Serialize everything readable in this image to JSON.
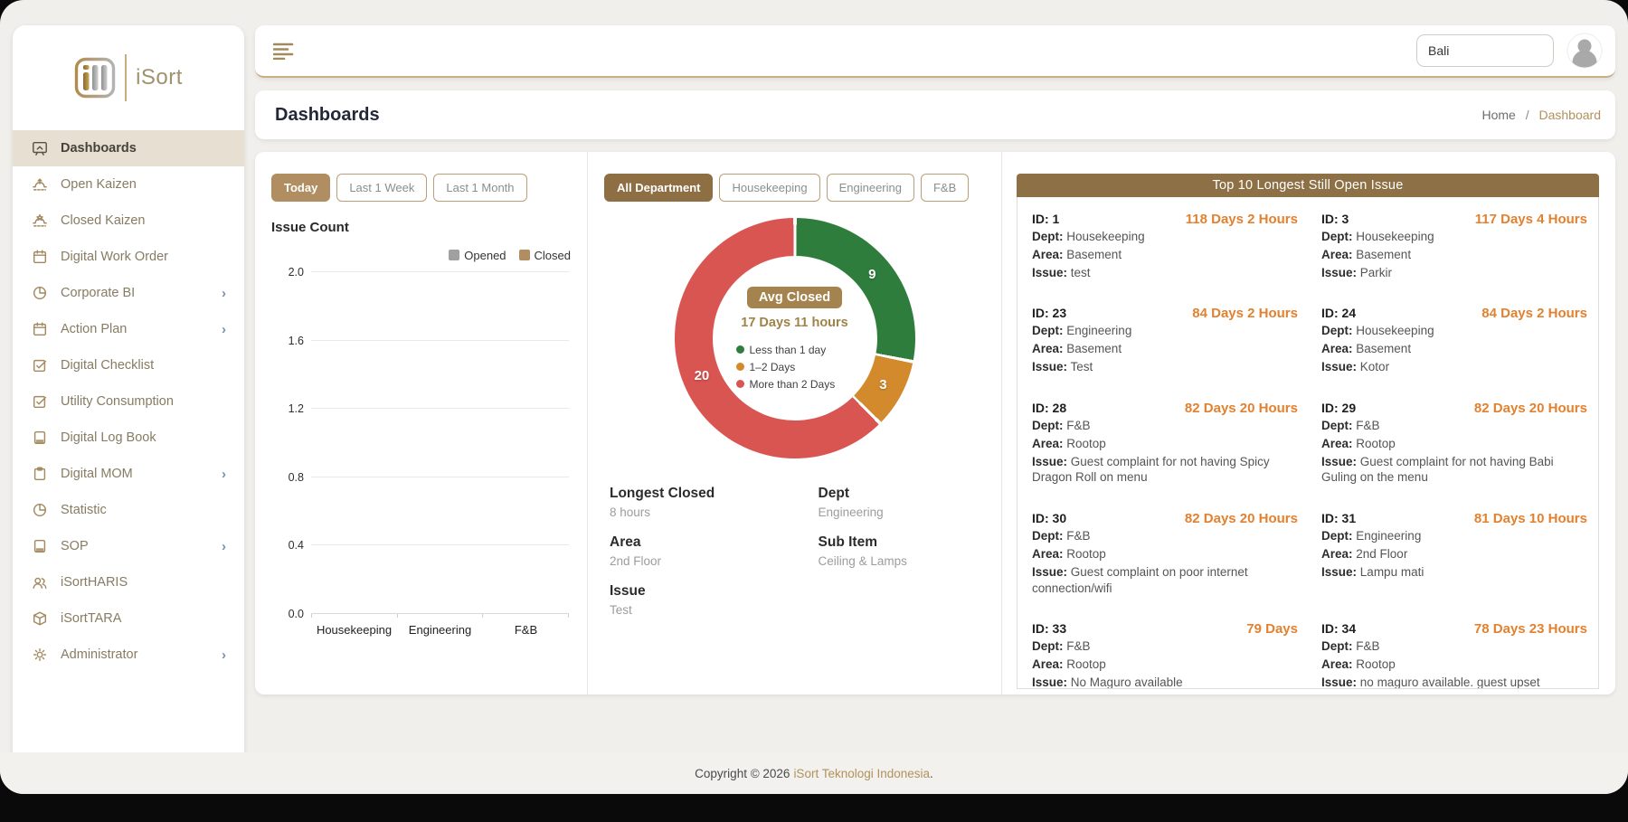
{
  "colors": {
    "accent_tan": "#b18e61",
    "accent_brown": "#8e7046",
    "badge_tan": "#a5834f",
    "days_orange": "#e2812f",
    "green": "#2e7d3d",
    "orange": "#d28a2d",
    "red": "#d95552",
    "opened_gray": "#a0a0a0",
    "link_tan": "#b0925c"
  },
  "sidebar": {
    "logo_text": "iSort",
    "items": [
      {
        "label": "Dashboards",
        "icon": "dashboard-icon",
        "active": true,
        "chevron": false
      },
      {
        "label": "Open Kaizen",
        "icon": "kaizen-open-icon",
        "active": false,
        "chevron": false
      },
      {
        "label": "Closed Kaizen",
        "icon": "kaizen-closed-icon",
        "active": false,
        "chevron": false
      },
      {
        "label": "Digital Work Order",
        "icon": "calendar-icon",
        "active": false,
        "chevron": false
      },
      {
        "label": "Corporate BI",
        "icon": "pie-chart-icon",
        "active": false,
        "chevron": true
      },
      {
        "label": "Action Plan",
        "icon": "calendar-icon",
        "active": false,
        "chevron": true
      },
      {
        "label": "Digital Checklist",
        "icon": "checklist-icon",
        "active": false,
        "chevron": false
      },
      {
        "label": "Utility Consumption",
        "icon": "checklist-icon",
        "active": false,
        "chevron": false
      },
      {
        "label": "Digital Log Book",
        "icon": "book-icon",
        "active": false,
        "chevron": false
      },
      {
        "label": "Digital MOM",
        "icon": "clipboard-icon",
        "active": false,
        "chevron": true
      },
      {
        "label": "Statistic",
        "icon": "pie-chart-icon",
        "active": false,
        "chevron": false
      },
      {
        "label": "SOP",
        "icon": "book-icon",
        "active": false,
        "chevron": true
      },
      {
        "label": "iSortHARIS",
        "icon": "people-icon",
        "active": false,
        "chevron": false
      },
      {
        "label": "iSortTARA",
        "icon": "box-icon",
        "active": false,
        "chevron": false
      },
      {
        "label": "Administrator",
        "icon": "gear-icon",
        "active": false,
        "chevron": true
      }
    ]
  },
  "topbar": {
    "search_value": "Bali"
  },
  "header": {
    "page_title": "Dashboards",
    "breadcrumb": {
      "home": "Home",
      "sep": "/",
      "current": "Dashboard"
    }
  },
  "filters": {
    "time_buttons": [
      "Today",
      "Last 1 Week",
      "Last 1 Month"
    ],
    "active_time": "Today",
    "dept_tabs": [
      "All Department",
      "Housekeeping",
      "Engineering",
      "F&B"
    ],
    "active_dept": "All Department"
  },
  "chart_data": [
    {
      "type": "bar",
      "title": "Issue Count",
      "categories": [
        "Housekeeping",
        "Engineering",
        "F&B"
      ],
      "series": [
        {
          "name": "Opened",
          "values": [
            0,
            0,
            0
          ],
          "color": "#a0a0a0"
        },
        {
          "name": "Closed",
          "values": [
            0,
            0,
            0
          ],
          "color": "#b18e61"
        }
      ],
      "ylim": [
        0,
        2.0
      ],
      "yticks": [
        0.0,
        0.4,
        0.8,
        1.2,
        1.6,
        2.0
      ],
      "grid": true,
      "legend_position": "top-right"
    },
    {
      "type": "donut",
      "center_badge": "Avg Closed",
      "center_value": "17 Days 11 hours",
      "segments": [
        {
          "label": "Less than 1 day",
          "value": 9,
          "color": "#2e7d3d"
        },
        {
          "label": "1–2 Days",
          "value": 3,
          "color": "#d28a2d"
        },
        {
          "label": "More than 2 Days",
          "value": 20,
          "color": "#d95552"
        }
      ],
      "legend_position": "center"
    }
  ],
  "longest_closed": {
    "fields": [
      {
        "label": "Longest Closed",
        "value": "8 hours"
      },
      {
        "label": "Dept",
        "value": "Engineering"
      },
      {
        "label": "Area",
        "value": "2nd Floor"
      },
      {
        "label": "Sub Item",
        "value": "Ceiling & Lamps"
      },
      {
        "label": "Issue",
        "value": "Test"
      }
    ]
  },
  "top10": {
    "title": "Top 10 Longest Still Open Issue",
    "field_labels": {
      "id": "ID:",
      "dept": "Dept:",
      "area": "Area:",
      "issue": "Issue:"
    },
    "items": [
      {
        "id": "1",
        "days": "118 Days 2 Hours",
        "dept": "Housekeeping",
        "area": "Basement",
        "issue": "test"
      },
      {
        "id": "3",
        "days": "117 Days 4 Hours",
        "dept": "Housekeeping",
        "area": "Basement",
        "issue": "Parkir"
      },
      {
        "id": "23",
        "days": "84 Days 2 Hours",
        "dept": "Engineering",
        "area": "Basement",
        "issue": "Test"
      },
      {
        "id": "24",
        "days": "84 Days 2 Hours",
        "dept": "Housekeeping",
        "area": "Basement",
        "issue": "Kotor"
      },
      {
        "id": "28",
        "days": "82 Days 20 Hours",
        "dept": "F&B",
        "area": "Rootop",
        "issue": "Guest complaint for not having Spicy Dragon Roll on menu"
      },
      {
        "id": "29",
        "days": "82 Days 20 Hours",
        "dept": "F&B",
        "area": "Rootop",
        "issue": "Guest complaint for not having Babi Guling on the menu"
      },
      {
        "id": "30",
        "days": "82 Days 20 Hours",
        "dept": "F&B",
        "area": "Rootop",
        "issue": "Guest complaint on poor internet connection/wifi"
      },
      {
        "id": "31",
        "days": "81 Days 10 Hours",
        "dept": "Engineering",
        "area": "2nd Floor",
        "issue": "Lampu mati"
      },
      {
        "id": "33",
        "days": "79 Days",
        "dept": "F&B",
        "area": "Rootop",
        "issue": "No Maguro available"
      },
      {
        "id": "34",
        "days": "78 Days 23 Hours",
        "dept": "F&B",
        "area": "Rootop",
        "issue": "no maguro available. guest upset"
      }
    ]
  },
  "footer": {
    "copyright_prefix": "Copyright © 2026",
    "company": "iSort Teknologi Indonesia",
    "suffix": "."
  }
}
